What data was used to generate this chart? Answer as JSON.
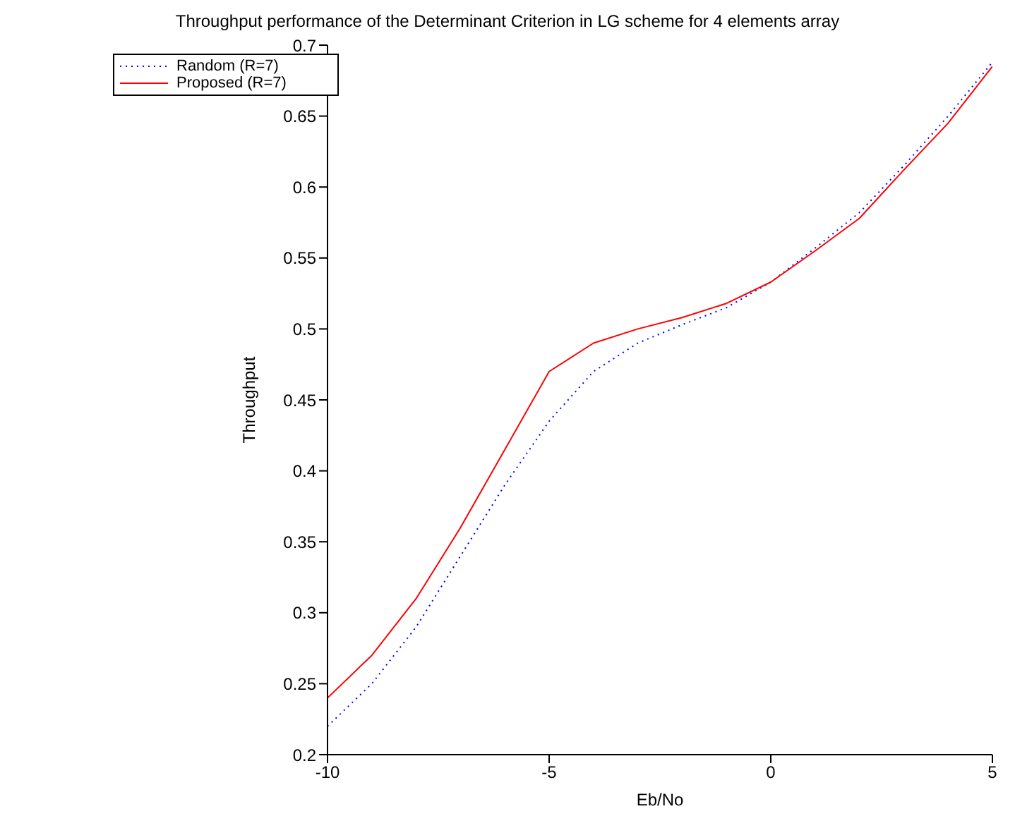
{
  "chart_data": {
    "type": "line",
    "title": "Throughput performance of the Determinant Criterion in LG scheme for 4 elements array",
    "xlabel": "Eb/No",
    "ylabel": "Throughput",
    "x": [
      -10,
      -9,
      -8,
      -7,
      -6,
      -5,
      -4,
      -3,
      -2,
      -1,
      0,
      1,
      2,
      3,
      4,
      5
    ],
    "series": [
      {
        "name": "Random (R=7)",
        "color": "#0000ff",
        "line_style": "dotted",
        "values": [
          0.22,
          0.25,
          0.29,
          0.34,
          0.39,
          0.435,
          0.47,
          0.49,
          0.503,
          0.515,
          0.533,
          0.557,
          0.582,
          0.615,
          0.65,
          0.688
        ]
      },
      {
        "name": "Proposed (R=7)",
        "color": "#ff0000",
        "line_style": "solid",
        "values": [
          0.24,
          0.27,
          0.31,
          0.36,
          0.415,
          0.47,
          0.49,
          0.5,
          0.508,
          0.518,
          0.533,
          0.555,
          0.578,
          0.612,
          0.645,
          0.685
        ]
      }
    ],
    "xlim": [
      -10,
      5
    ],
    "xticks": [
      -10,
      -5,
      0,
      5
    ],
    "ylim": [
      0.2,
      0.7
    ],
    "yticks": [
      0.2,
      0.25,
      0.3,
      0.35,
      0.4,
      0.45,
      0.5,
      0.55,
      0.6,
      0.65,
      0.7
    ],
    "grid": false,
    "legend": "top left",
    "marker": "none"
  }
}
